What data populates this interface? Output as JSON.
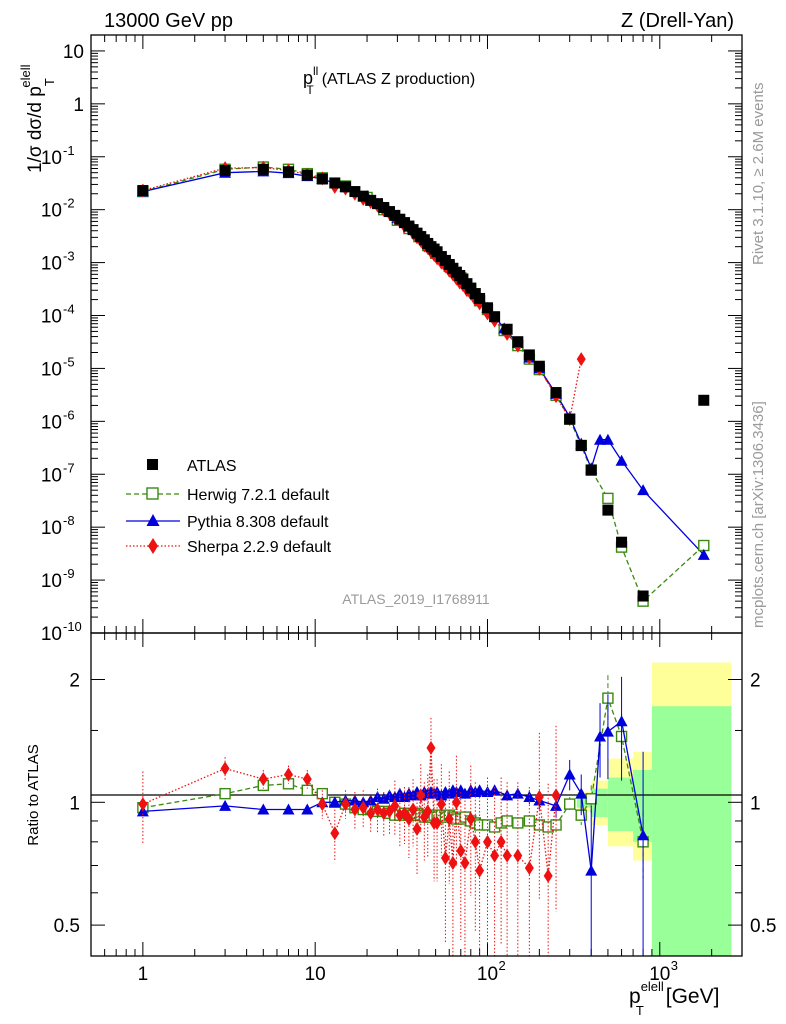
{
  "header": {
    "left": "13000 GeV pp",
    "right": "Z (Drell-Yan)"
  },
  "side_labels": {
    "rivet": "Rivet 3.1.10, ≥ 2.6M events",
    "mcplots": "mcplots.cern.ch [arXiv:1306.3436]"
  },
  "analysis_id": "ATLAS_2019_I1768911",
  "chart_data": [
    {
      "type": "scatter",
      "panel": "main",
      "title_main": "p",
      "title_sup": "ll",
      "title_sub": "T",
      "title_rest": "(ATLAS Z production)",
      "ylabel": "1/σ dσ/d p",
      "ylabel_sup": "elell",
      "ylabel_sub": "T",
      "xscale": "log",
      "yscale": "log",
      "xlim": [
        0.5,
        3000
      ],
      "ylim": [
        1e-10,
        20
      ],
      "ytick_labels": [
        {
          "exp": "-10",
          "v": 1e-10
        },
        {
          "exp": "-9",
          "v": 1e-09
        },
        {
          "exp": "-8",
          "v": 1e-08
        },
        {
          "exp": "-7",
          "v": 1e-07
        },
        {
          "exp": "-6",
          "v": 1e-06
        },
        {
          "exp": "-5",
          "v": 1e-05
        },
        {
          "exp": "-4",
          "v": 0.0001
        },
        {
          "exp": "-3",
          "v": 0.001
        },
        {
          "exp": "-2",
          "v": 0.01
        },
        {
          "exp": "-1",
          "v": 0.1
        },
        {
          "text": "1",
          "v": 1
        },
        {
          "text": "10",
          "v": 10
        }
      ],
      "legend_position": "lower-left",
      "series": [
        {
          "name": "ATLAS",
          "color": "#000000",
          "marker": "square",
          "x": [
            1,
            3,
            5,
            7,
            9,
            11,
            13,
            15,
            17,
            19,
            21,
            23,
            25,
            27,
            29,
            31,
            33,
            35,
            37,
            39,
            41,
            43,
            45,
            47,
            49,
            51,
            54,
            57,
            60,
            63,
            66,
            69,
            72,
            76,
            80,
            85,
            90,
            100,
            110,
            130,
            150,
            175,
            200,
            250,
            300,
            350,
            400,
            500,
            600,
            800,
            1800
          ],
          "y": [
            0.023,
            0.055,
            0.058,
            0.052,
            0.045,
            0.038,
            0.032,
            0.027,
            0.022,
            0.018,
            0.015,
            0.013,
            0.011,
            0.0092,
            0.0078,
            0.0066,
            0.0057,
            0.0049,
            0.0042,
            0.0036,
            0.0031,
            0.0027,
            0.0023,
            0.002,
            0.0018,
            0.0016,
            0.0013,
            0.0011,
            0.00092,
            0.00078,
            0.00066,
            0.00057,
            0.00049,
            0.0004,
            0.00033,
            0.00026,
            0.00021,
            0.00014,
            9.5e-05,
            5.5e-05,
            3.2e-05,
            1.8e-05,
            1.1e-05,
            3.5e-06,
            1.1e-06,
            3.5e-07,
            1.2e-07,
            2.1e-08,
            5.2e-09,
            5e-10,
            2.5e-06
          ]
        },
        {
          "name": "Herwig 7.2.1 default",
          "color": "#3a8a10",
          "marker": "open-square",
          "line": "dashed",
          "x": [
            1,
            3,
            5,
            7,
            9,
            11,
            15,
            20,
            25,
            30,
            35,
            40,
            45,
            50,
            60,
            70,
            80,
            90,
            100,
            125,
            150,
            175,
            200,
            250,
            300,
            350,
            400,
            500,
            600,
            800,
            1800
          ],
          "y": [
            0.022,
            0.058,
            0.064,
            0.058,
            0.048,
            0.04,
            0.028,
            0.017,
            0.01,
            0.0063,
            0.0044,
            0.0031,
            0.0021,
            0.0015,
            0.00085,
            0.00052,
            0.00031,
            0.00019,
            0.00013,
            5.2e-05,
            2.7e-05,
            1.5e-05,
            9.5e-06,
            3.1e-06,
            1.1e-06,
            3.5e-07,
            1.2e-07,
            3.5e-08,
            4.2e-09,
            4e-10,
            4.5e-09
          ]
        },
        {
          "name": "Pythia 8.308 default",
          "color": "#0000dd",
          "marker": "triangle",
          "line": "solid",
          "x": [
            1,
            3,
            5,
            7,
            9,
            11,
            15,
            20,
            25,
            30,
            35,
            40,
            45,
            50,
            60,
            70,
            80,
            90,
            100,
            125,
            150,
            175,
            200,
            250,
            300,
            350,
            400,
            450,
            500,
            600,
            800,
            1800
          ],
          "y": [
            0.022,
            0.05,
            0.053,
            0.049,
            0.043,
            0.038,
            0.027,
            0.018,
            0.011,
            0.007,
            0.0048,
            0.0034,
            0.0024,
            0.0017,
            0.00095,
            0.00058,
            0.00036,
            0.00022,
            0.00014,
            5.7e-05,
            3e-05,
            1.6e-05,
            1e-05,
            3.3e-06,
            1.2e-06,
            3.8e-07,
            1.3e-07,
            4.5e-07,
            4.5e-07,
            1.8e-07,
            5e-08,
            3e-09
          ]
        },
        {
          "name": "Sherpa 2.2.9 default",
          "color": "#ee1111",
          "marker": "diamond",
          "line": "dotted",
          "x": [
            1,
            3,
            5,
            7,
            9,
            11,
            13,
            15,
            17,
            19,
            21,
            23,
            25,
            27,
            29,
            31,
            33,
            35,
            37,
            39,
            41,
            43,
            45,
            47,
            49,
            51,
            54,
            57,
            60,
            63,
            66,
            69,
            72,
            76,
            80,
            85,
            90,
            100,
            110,
            130,
            150,
            175,
            200,
            250,
            300,
            350
          ],
          "y": [
            0.023,
            0.061,
            0.062,
            0.055,
            0.046,
            0.039,
            0.027,
            0.025,
            0.02,
            0.016,
            0.014,
            0.012,
            0.0098,
            0.0085,
            0.007,
            0.006,
            0.0049,
            0.0045,
            0.0036,
            0.003,
            0.0026,
            0.0021,
            0.0019,
            0.0016,
            0.0014,
            0.0012,
            0.001,
            0.00085,
            0.0007,
            0.0006,
            0.0005,
            0.00042,
            0.00038,
            0.0003,
            0.00026,
            0.0002,
            0.00017,
            0.00011,
            8e-05,
            4.5e-05,
            2.7e-05,
            1.6e-05,
            9.8e-06,
            3e-06,
            1.1e-06,
            1.5e-05
          ]
        }
      ]
    },
    {
      "type": "scatter",
      "panel": "ratio",
      "ylabel": "Ratio to ATLAS",
      "xlabel": "p",
      "xlabel_sup": "elell",
      "xlabel_sub": "T",
      "xlabel_unit": "[GeV]",
      "xscale": "log",
      "yscale": "log",
      "xlim": [
        0.5,
        3000
      ],
      "ylim": [
        0.42,
        2.6
      ],
      "ytick_labels": [
        {
          "text": "0.5",
          "v": 0.5
        },
        {
          "text": "1",
          "v": 1
        },
        {
          "text": "2",
          "v": 2
        }
      ],
      "xtick_labels": [
        {
          "text": "1",
          "v": 1
        },
        {
          "text": "10",
          "v": 10
        },
        {
          "text": "10",
          "exp": "2",
          "v": 100
        },
        {
          "text": "10",
          "exp": "3",
          "v": 1000
        }
      ],
      "band_inner_color": "#99ff99",
      "band_outer_color": "#ffff99",
      "bands": [
        {
          "x0": 330,
          "x1": 400,
          "lo_in": 0.97,
          "hi_in": 1.03,
          "lo_out": 0.95,
          "hi_out": 1.06
        },
        {
          "x0": 400,
          "x1": 500,
          "lo_in": 0.92,
          "hi_in": 1.08,
          "lo_out": 0.88,
          "hi_out": 1.13
        },
        {
          "x0": 500,
          "x1": 700,
          "lo_in": 0.85,
          "hi_in": 1.15,
          "lo_out": 0.78,
          "hi_out": 1.28
        },
        {
          "x0": 700,
          "x1": 900,
          "lo_in": 0.8,
          "hi_in": 1.2,
          "lo_out": 0.72,
          "hi_out": 1.33
        },
        {
          "x0": 900,
          "x1": 2600,
          "lo_in": 0.3,
          "hi_in": 1.72,
          "lo_out": 0.3,
          "hi_out": 2.2
        }
      ],
      "series": [
        {
          "name": "Herwig 7.2.1 default",
          "color": "#3a8a10",
          "marker": "open-square",
          "line": "dashed",
          "x": [
            1,
            3,
            5,
            7,
            9,
            11,
            13,
            15,
            17,
            19,
            21,
            23,
            25,
            27,
            29,
            31,
            33,
            35,
            37,
            39,
            41,
            43,
            45,
            47,
            49,
            51,
            54,
            57,
            60,
            63,
            66,
            70,
            74,
            80,
            85,
            90,
            100,
            110,
            120,
            130,
            150,
            175,
            200,
            225,
            250,
            300,
            350,
            400,
            500,
            600,
            800
          ],
          "y": [
            0.97,
            1.05,
            1.1,
            1.11,
            1.07,
            1.05,
            1.0,
            0.99,
            0.97,
            0.96,
            0.96,
            0.95,
            0.95,
            0.94,
            0.93,
            0.93,
            0.94,
            0.93,
            0.93,
            0.94,
            0.93,
            0.92,
            0.93,
            0.92,
            0.93,
            0.92,
            0.93,
            0.92,
            0.93,
            0.92,
            0.91,
            0.91,
            0.92,
            0.9,
            0.89,
            0.88,
            0.88,
            0.87,
            0.89,
            0.9,
            0.89,
            0.9,
            0.88,
            0.87,
            0.88,
            0.99,
            0.93,
            1.02,
            1.8,
            1.45,
            0.8
          ],
          "yerr": [
            0.01,
            0.01,
            0.01,
            0.01,
            0.01,
            0.01,
            0.01,
            0.01,
            0.01,
            0.01,
            0.01,
            0.01,
            0.01,
            0.01,
            0.01,
            0.01,
            0.01,
            0.01,
            0.01,
            0.01,
            0.01,
            0.01,
            0.01,
            0.01,
            0.01,
            0.01,
            0.02,
            0.02,
            0.02,
            0.02,
            0.02,
            0.02,
            0.02,
            0.02,
            0.02,
            0.02,
            0.02,
            0.02,
            0.02,
            0.02,
            0.02,
            0.02,
            0.02,
            0.02,
            0.03,
            0.04,
            0.05,
            0.08,
            0.25,
            0.2,
            0.15
          ]
        },
        {
          "name": "Pythia 8.308 default",
          "color": "#0000dd",
          "marker": "triangle",
          "line": "solid",
          "x": [
            1,
            3,
            5,
            7,
            9,
            11,
            13,
            15,
            17,
            19,
            21,
            23,
            25,
            27,
            29,
            31,
            33,
            35,
            37,
            39,
            41,
            43,
            45,
            47,
            49,
            51,
            54,
            57,
            60,
            63,
            66,
            70,
            74,
            80,
            85,
            90,
            100,
            110,
            130,
            150,
            175,
            200,
            250,
            300,
            350,
            400,
            450,
            500,
            600,
            800
          ],
          "y": [
            0.95,
            0.98,
            0.96,
            0.96,
            0.96,
            1.0,
            1.0,
            1.01,
            1.01,
            1.0,
            1.01,
            1.03,
            1.02,
            1.04,
            1.03,
            1.05,
            1.03,
            1.05,
            1.04,
            1.06,
            1.04,
            1.06,
            1.05,
            1.06,
            1.05,
            1.06,
            1.04,
            1.06,
            1.05,
            1.07,
            1.06,
            1.07,
            1.05,
            1.07,
            1.06,
            1.07,
            1.06,
            1.07,
            1.04,
            1.05,
            1.03,
            1.01,
            0.98,
            1.17,
            1.05,
            0.68,
            1.45,
            1.49,
            1.58,
            0.83
          ],
          "yerr": [
            0.01,
            0.01,
            0.01,
            0.01,
            0.01,
            0.01,
            0.01,
            0.01,
            0.01,
            0.01,
            0.01,
            0.01,
            0.01,
            0.01,
            0.01,
            0.01,
            0.01,
            0.01,
            0.01,
            0.01,
            0.01,
            0.01,
            0.02,
            0.02,
            0.02,
            0.02,
            0.02,
            0.02,
            0.02,
            0.02,
            0.03,
            0.03,
            0.03,
            0.03,
            0.03,
            0.03,
            0.03,
            0.03,
            0.03,
            0.03,
            0.04,
            0.05,
            0.06,
            0.1,
            0.12,
            0.3,
            0.3,
            0.35,
            0.45,
            0.5
          ]
        },
        {
          "name": "Sherpa 2.2.9 default",
          "color": "#ee1111",
          "marker": "diamond",
          "line": "dotted",
          "x": [
            1,
            3,
            5,
            7,
            9,
            11,
            13,
            15,
            17,
            19,
            21,
            23,
            25,
            27,
            29,
            31,
            33,
            35,
            37,
            39,
            41,
            43,
            45,
            47,
            49,
            51,
            54,
            57,
            60,
            63,
            66,
            70,
            74,
            80,
            85,
            90,
            100,
            110,
            120,
            130,
            150,
            175,
            200,
            225,
            250
          ],
          "y": [
            0.99,
            1.21,
            1.14,
            1.17,
            1.14,
            0.99,
            0.84,
            0.99,
            0.96,
            0.97,
            0.94,
            0.96,
            0.94,
            0.95,
            0.98,
            0.93,
            0.94,
            0.91,
            0.96,
            0.86,
            1.04,
            0.92,
            0.95,
            1.36,
            0.89,
            0.89,
            0.99,
            0.73,
            0.91,
            0.71,
            1.0,
            0.76,
            0.71,
            0.91,
            0.8,
            0.68,
            0.8,
            0.74,
            0.8,
            0.74,
            0.74,
            0.69,
            1.03,
            0.66,
            1.04
          ],
          "yerr": [
            0.2,
            0.08,
            0.06,
            0.06,
            0.06,
            0.08,
            0.12,
            0.08,
            0.1,
            0.1,
            0.1,
            0.12,
            0.12,
            0.12,
            0.15,
            0.15,
            0.15,
            0.18,
            0.18,
            0.2,
            0.2,
            0.2,
            0.22,
            0.25,
            0.25,
            0.25,
            0.25,
            0.28,
            0.28,
            0.3,
            0.3,
            0.3,
            0.3,
            0.32,
            0.32,
            0.35,
            0.35,
            0.35,
            0.35,
            0.38,
            0.38,
            0.4,
            0.45,
            0.45,
            0.5
          ]
        }
      ]
    }
  ]
}
